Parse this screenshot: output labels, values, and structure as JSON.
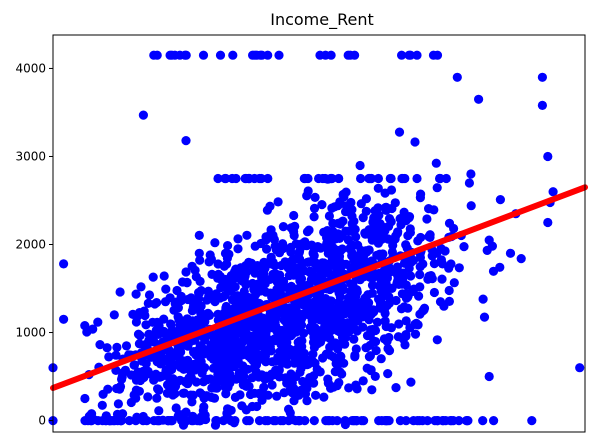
{
  "chart_data": {
    "type": "scatter",
    "title": "Income_Rent",
    "xlabel": "",
    "ylabel": "",
    "x_ticks_shown": false,
    "ylim": [
      -130,
      4380
    ],
    "y_ticks": [
      0,
      1000,
      2000,
      3000,
      4000
    ],
    "y_tick_labels": [
      "0",
      "1000",
      "2000",
      "3000",
      "4000"
    ],
    "grid": false,
    "legend": "none",
    "x_range": [
      0,
      1
    ],
    "series": [
      {
        "kind": "points",
        "color": "#0000ff",
        "clusters": [
          {
            "x_center": 0.42,
            "y_center": 1100,
            "x_spread": 0.14,
            "y_spread": 520,
            "slope": 1700,
            "count": 900
          },
          {
            "x_center": 0.55,
            "y_center": 1600,
            "x_spread": 0.12,
            "y_spread": 520,
            "slope": 1700,
            "count": 450
          },
          {
            "x_center": 0.28,
            "y_center": 900,
            "x_spread": 0.08,
            "y_spread": 380,
            "slope": 1700,
            "count": 300
          }
        ],
        "band_zero": {
          "y": 0,
          "x_from": 0.05,
          "x_to": 0.83,
          "count": 110
        },
        "band_top": {
          "y": 4150,
          "x_from": 0.17,
          "x_to": 0.75,
          "count": 30
        },
        "band_2750": {
          "y": 2750,
          "x_from": 0.3,
          "x_to": 0.75,
          "count": 40
        },
        "outliers": [
          [
            0.0,
            0
          ],
          [
            0.0,
            600
          ],
          [
            0.02,
            1780
          ],
          [
            0.02,
            1150
          ],
          [
            0.17,
            3470
          ],
          [
            0.99,
            600
          ],
          [
            0.92,
            3900
          ],
          [
            0.92,
            3580
          ],
          [
            0.93,
            3000
          ],
          [
            0.93,
            2250
          ],
          [
            0.94,
            2600
          ],
          [
            0.87,
            2350
          ],
          [
            0.06,
            250
          ],
          [
            0.9,
            0
          ],
          [
            0.25,
            3180
          ],
          [
            0.82,
            500
          ],
          [
            0.86,
            1900
          ],
          [
            0.88,
            1840
          ],
          [
            0.76,
            3900
          ],
          [
            0.8,
            3650
          ]
        ]
      },
      {
        "kind": "regression-line",
        "color": "#ff0000",
        "from": {
          "x": 0.0,
          "y": 370
        },
        "to": {
          "x": 1.0,
          "y": 2650
        }
      }
    ]
  }
}
